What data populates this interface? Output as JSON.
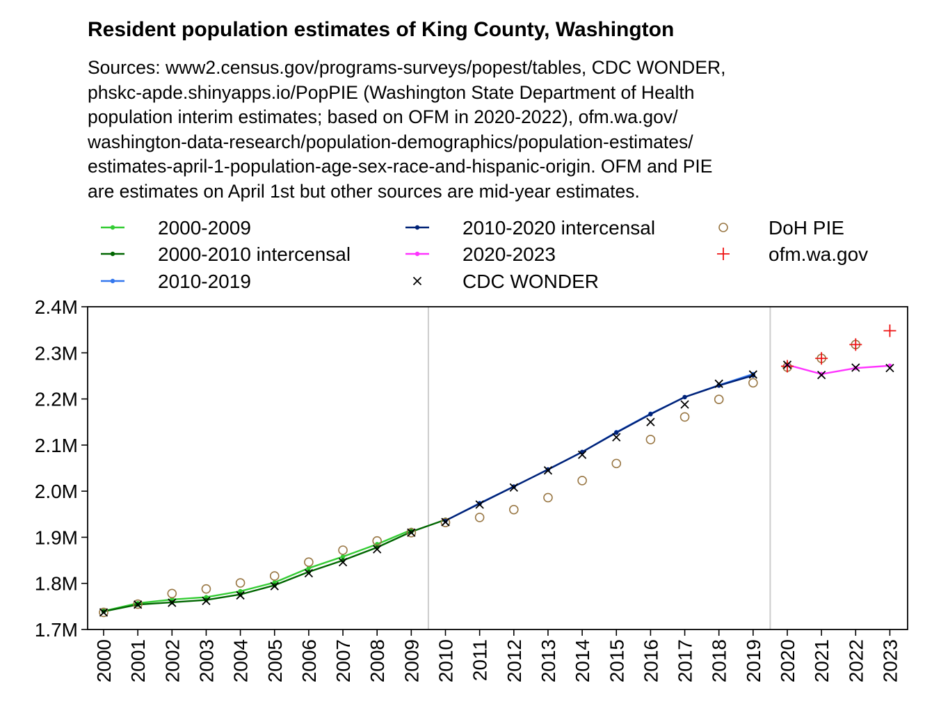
{
  "title": "Resident population estimates of King County, Washington",
  "subtitle_lines": [
    "Sources: www2.census.gov/programs-surveys/popest/tables, CDC WONDER,",
    "phskc-apde.shinyapps.io/PopPIE (Washington State Department of Health",
    "population interim estimates; based on OFM in 2020-2022), ofm.wa.gov/",
    "washington-data-research/population-demographics/population-estimates/",
    "estimates-april-1-population-age-sex-race-and-hispanic-origin. OFM and PIE",
    "are estimates on April 1st but other sources are mid-year estimates."
  ],
  "chart_data": {
    "type": "line",
    "x": [
      "2000",
      "2001",
      "2002",
      "2003",
      "2004",
      "2005",
      "2006",
      "2007",
      "2008",
      "2009",
      "2010",
      "2011",
      "2012",
      "2013",
      "2014",
      "2015",
      "2016",
      "2017",
      "2018",
      "2019",
      "2020",
      "2021",
      "2022",
      "2023"
    ],
    "ylim": [
      1700000,
      2400000
    ],
    "yticks": [
      1700000,
      1800000,
      1900000,
      2000000,
      2100000,
      2200000,
      2300000,
      2400000
    ],
    "ytick_labels": [
      "1.7M",
      "1.8M",
      "1.9M",
      "2.0M",
      "2.1M",
      "2.2M",
      "2.3M",
      "2.4M"
    ],
    "vlines": [
      "2009.5",
      "2019.5"
    ],
    "legend_position": "top",
    "series": [
      {
        "name": "2000-2009",
        "kind": "line",
        "color": "#33cc33",
        "points": [
          [
            2000,
            1740000
          ],
          [
            2001,
            1757000
          ],
          [
            2002,
            1765000
          ],
          [
            2003,
            1770000
          ],
          [
            2004,
            1783000
          ],
          [
            2005,
            1802000
          ],
          [
            2006,
            1833000
          ],
          [
            2007,
            1858000
          ],
          [
            2008,
            1885000
          ],
          [
            2009,
            1916000
          ]
        ]
      },
      {
        "name": "2000-2010 intercensal",
        "kind": "line",
        "color": "#006600",
        "points": [
          [
            2000,
            1739000
          ],
          [
            2001,
            1754000
          ],
          [
            2002,
            1759000
          ],
          [
            2003,
            1764000
          ],
          [
            2004,
            1776000
          ],
          [
            2005,
            1796000
          ],
          [
            2006,
            1825000
          ],
          [
            2007,
            1850000
          ],
          [
            2008,
            1878000
          ],
          [
            2009,
            1912000
          ],
          [
            2010,
            1938000
          ]
        ]
      },
      {
        "name": "2010-2019",
        "kind": "line",
        "color": "#3377ee",
        "points": [
          [
            2010,
            1936000
          ],
          [
            2011,
            1974000
          ],
          [
            2012,
            2010000
          ],
          [
            2013,
            2047000
          ],
          [
            2014,
            2085000
          ],
          [
            2015,
            2128000
          ],
          [
            2016,
            2168000
          ],
          [
            2017,
            2204000
          ],
          [
            2018,
            2230000
          ],
          [
            2019,
            2254000
          ]
        ]
      },
      {
        "name": "2010-2020 intercensal",
        "kind": "line",
        "color": "#002277",
        "points": [
          [
            2010,
            1936000
          ],
          [
            2011,
            1973000
          ],
          [
            2012,
            2010000
          ],
          [
            2013,
            2047000
          ],
          [
            2014,
            2085000
          ],
          [
            2015,
            2127000
          ],
          [
            2016,
            2167000
          ],
          [
            2017,
            2204000
          ],
          [
            2018,
            2229000
          ],
          [
            2019,
            2251000
          ]
        ]
      },
      {
        "name": "2020-2023",
        "kind": "line",
        "color": "#ff33ff",
        "points": [
          [
            2020,
            2274000
          ],
          [
            2021,
            2254000
          ],
          [
            2022,
            2267000
          ],
          [
            2023,
            2272000
          ]
        ]
      },
      {
        "name": "CDC WONDER",
        "kind": "cross",
        "color": "#000000",
        "points": [
          [
            2000,
            1737000
          ],
          [
            2001,
            1754000
          ],
          [
            2002,
            1758000
          ],
          [
            2003,
            1762000
          ],
          [
            2004,
            1774000
          ],
          [
            2005,
            1794000
          ],
          [
            2006,
            1822000
          ],
          [
            2007,
            1846000
          ],
          [
            2008,
            1874000
          ],
          [
            2009,
            1910000
          ],
          [
            2010,
            1933000
          ],
          [
            2011,
            1971000
          ],
          [
            2012,
            2008000
          ],
          [
            2013,
            2045000
          ],
          [
            2014,
            2079000
          ],
          [
            2015,
            2117000
          ],
          [
            2016,
            2150000
          ],
          [
            2017,
            2188000
          ],
          [
            2018,
            2233000
          ],
          [
            2019,
            2253000
          ],
          [
            2020,
            2274000
          ],
          [
            2021,
            2252000
          ],
          [
            2022,
            2268000
          ],
          [
            2023,
            2267000
          ]
        ]
      },
      {
        "name": "DoH PIE",
        "kind": "circle",
        "color": "#997744",
        "points": [
          [
            2000,
            1737000
          ],
          [
            2001,
            1755000
          ],
          [
            2002,
            1778000
          ],
          [
            2003,
            1788000
          ],
          [
            2004,
            1801000
          ],
          [
            2005,
            1816000
          ],
          [
            2006,
            1846000
          ],
          [
            2007,
            1872000
          ],
          [
            2008,
            1892000
          ],
          [
            2009,
            1910000
          ],
          [
            2010,
            1932000
          ],
          [
            2011,
            1943000
          ],
          [
            2012,
            1960000
          ],
          [
            2013,
            1986000
          ],
          [
            2014,
            2023000
          ],
          [
            2015,
            2060000
          ],
          [
            2016,
            2112000
          ],
          [
            2017,
            2161000
          ],
          [
            2018,
            2199000
          ],
          [
            2019,
            2235000
          ],
          [
            2020,
            2269000
          ],
          [
            2021,
            2288000
          ],
          [
            2022,
            2318000
          ]
        ]
      },
      {
        "name": "ofm.wa.gov",
        "kind": "plus",
        "color": "#ee1111",
        "points": [
          [
            2020,
            2271000
          ],
          [
            2021,
            2288000
          ],
          [
            2022,
            2318000
          ],
          [
            2023,
            2348000
          ]
        ]
      }
    ]
  }
}
